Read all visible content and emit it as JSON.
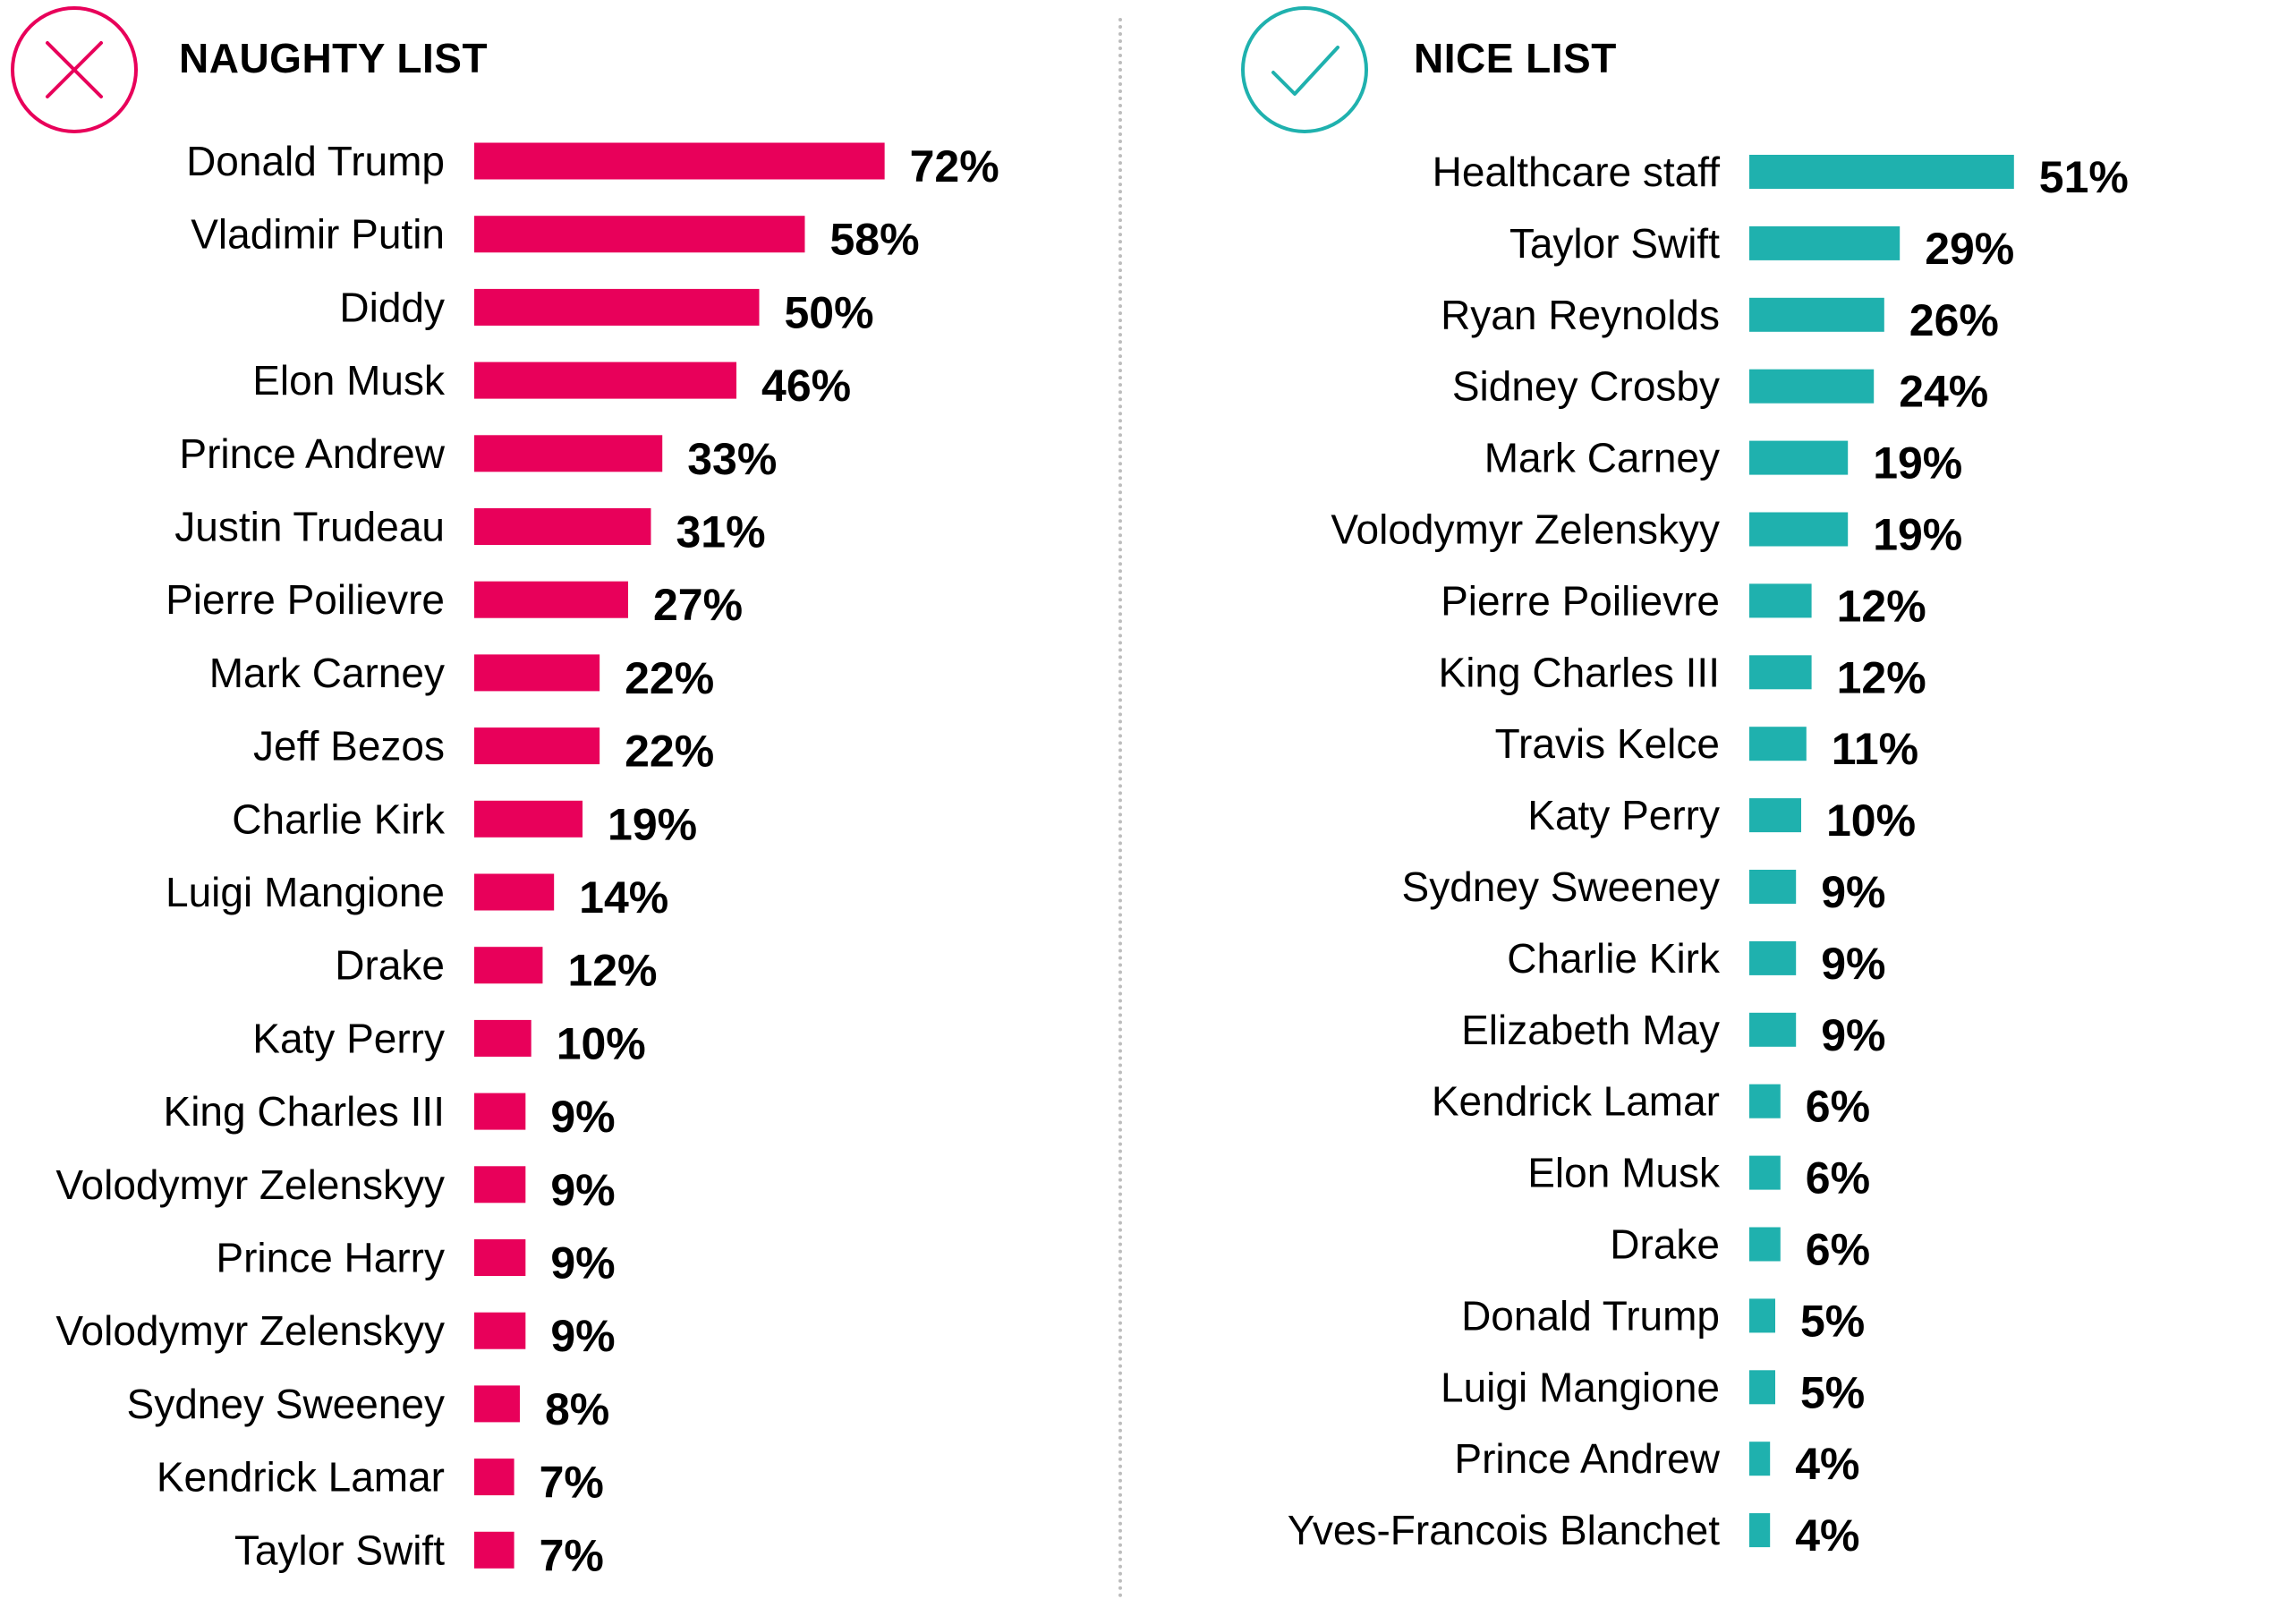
{
  "colors": {
    "naughty": "#E8005A",
    "nice": "#1FB1AE",
    "text": "#000000",
    "divider": "#BDBDBD"
  },
  "naughty": {
    "title": "NAUGHTY LIST",
    "icon": "x-circle-icon"
  },
  "nice": {
    "title": "NICE LIST",
    "icon": "check-circle-icon"
  },
  "chart_data": [
    {
      "type": "bar",
      "orientation": "horizontal",
      "title": "NAUGHTY LIST",
      "categories": [
        "Donald Trump",
        "Vladimir Putin",
        "Diddy",
        "Elon Musk",
        "Prince Andrew",
        "Justin Trudeau",
        "Pierre Poilievre",
        "Mark Carney",
        "Jeff Bezos",
        "Charlie Kirk",
        "Luigi Mangione",
        "Drake",
        "Katy Perry",
        "King Charles III",
        "Volodymyr Zelenskyy",
        "Prince Harry",
        "Volodymyr Zelenskyy",
        "Sydney Sweeney",
        "Kendrick Lamar",
        "Taylor Swift"
      ],
      "values": [
        72,
        58,
        50,
        46,
        33,
        31,
        27,
        22,
        22,
        19,
        14,
        12,
        10,
        9,
        9,
        9,
        9,
        8,
        7,
        7
      ],
      "data_labels": [
        "72%",
        "58%",
        "50%",
        "46%",
        "33%",
        "31%",
        "27%",
        "22%",
        "22%",
        "19%",
        "14%",
        "12%",
        "10%",
        "9%",
        "9%",
        "9%",
        "9%",
        "8%",
        "7%",
        "7%"
      ],
      "unit": "%",
      "color": "#E8005A",
      "grid": false,
      "legend": "none"
    },
    {
      "type": "bar",
      "orientation": "horizontal",
      "title": "NICE LIST",
      "categories": [
        "Healthcare staff",
        "Taylor Swift",
        "Ryan Reynolds",
        "Sidney Crosby",
        "Mark Carney",
        "Volodymyr Zelenskyy",
        "Pierre Poilievre",
        "King Charles III",
        "Travis Kelce",
        "Katy Perry",
        "Sydney Sweeney",
        "Charlie Kirk",
        "Elizabeth May",
        "Kendrick Lamar",
        "Elon Musk",
        "Drake",
        "Donald Trump",
        "Luigi Mangione",
        "Prince Andrew",
        "Yves-Francois Blanchet"
      ],
      "values": [
        51,
        29,
        26,
        24,
        19,
        19,
        12,
        12,
        11,
        10,
        9,
        9,
        9,
        6,
        6,
        6,
        5,
        5,
        4,
        4
      ],
      "data_labels": [
        "51%",
        "29%",
        "26%",
        "24%",
        "19%",
        "19%",
        "12%",
        "12%",
        "11%",
        "10%",
        "9%",
        "9%",
        "9%",
        "6%",
        "6%",
        "6%",
        "5%",
        "5%",
        "4%",
        "4%"
      ],
      "unit": "%",
      "color": "#1FB1AE",
      "grid": false,
      "legend": "none"
    }
  ]
}
